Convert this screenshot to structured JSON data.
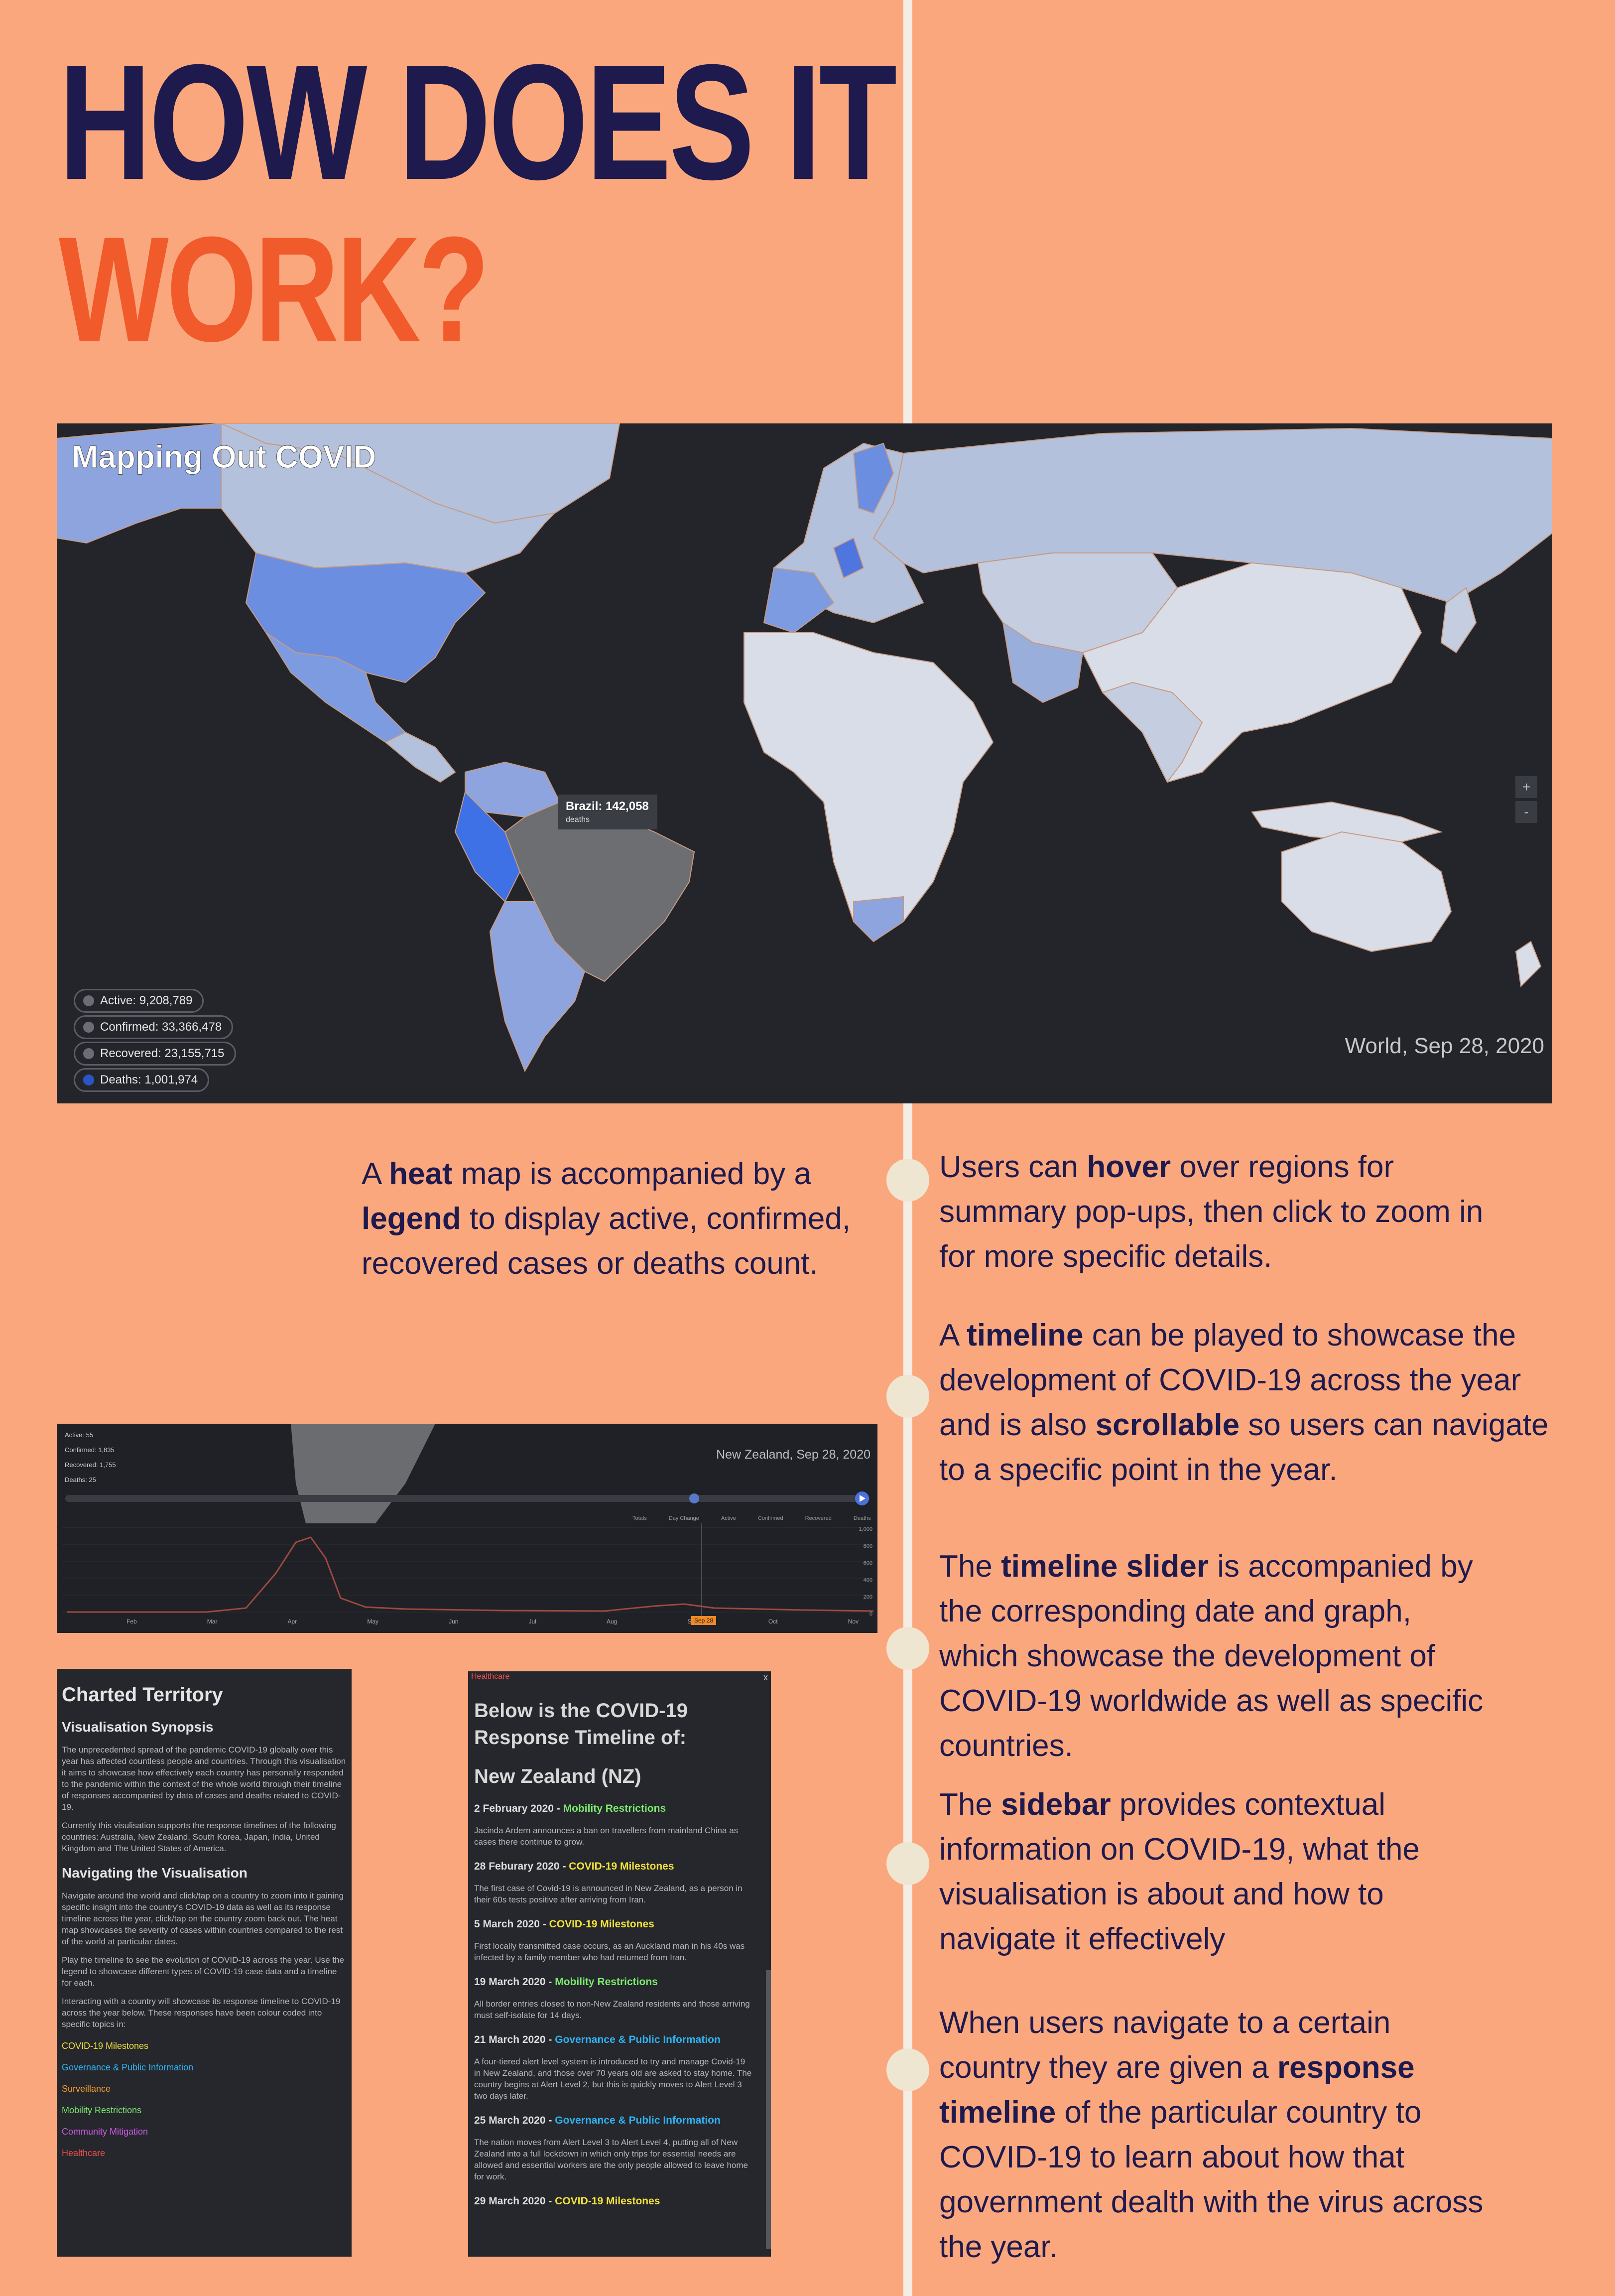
{
  "title": {
    "line1": "HOW DOES IT",
    "line2": "WORK?"
  },
  "map": {
    "title": "Mapping Out COVID",
    "caption": "World, Sep 28, 2020",
    "tooltip": {
      "country": "Brazil: 142,058",
      "metric": "deaths"
    },
    "zoom_in": "+",
    "zoom_out": "-",
    "legend": [
      {
        "label": "Active: 9,208,789",
        "color": "#6a6d75"
      },
      {
        "label": "Confirmed: 33,366,478",
        "color": "#6a6d75"
      },
      {
        "label": "Recovered: 23,155,715",
        "color": "#6a6d75"
      },
      {
        "label": "Deaths: 1,001,974",
        "color": "#2b55c7"
      }
    ]
  },
  "desc": {
    "heat": [
      "A ",
      "heat",
      " map is accompanied by a ",
      "legend",
      " to display active, confirmed, recovered cases or deaths count."
    ],
    "hover": [
      "Users can ",
      "hover",
      " over regions for summary pop-ups, then click to zoom in for more specific details."
    ],
    "timeline": [
      "A ",
      "timeline",
      " can be played to showcase the development of COVID-19 across the year and is also ",
      "scrollable",
      " so users can navigate to a specific point in the year."
    ],
    "slider": [
      "The ",
      "timeline slider",
      " is accompanied by the corresponding date and graph, which showcase the development of COVID-19 worldwide as well as specific countries."
    ],
    "sidebar": [
      "The ",
      "sidebar",
      " provides contextual information on COVID-19, what the visualisation is about and how to navigate it effectively"
    ],
    "response": [
      "When users navigate to a certain country they are given a ",
      "response timeline",
      " of the particular country to COVID-19 to learn about how that government dealth with the virus across the year."
    ]
  },
  "timeline_panel": {
    "caption": "New Zealand, Sep 28, 2020",
    "legend": [
      "Active: 55",
      "Confirmed: 1,835",
      "Recovered: 1,755",
      "Deaths: 25"
    ],
    "toggle_label": "Day Change",
    "toggle_prefix": "Totals",
    "series_labels": [
      "Active",
      "Confirmed",
      "Recovered",
      "Deaths"
    ],
    "months": [
      "Feb",
      "Mar",
      "Apr",
      "May",
      "Jun",
      "Jul",
      "Aug",
      "Sep",
      "Oct",
      "Nov"
    ],
    "current_marker": "Sep 28",
    "y_ticks": [
      "1,000",
      "800",
      "600",
      "400",
      "200",
      "0"
    ]
  },
  "sidebar": {
    "title": "Charted Territory",
    "synopsis_heading": "Visualisation Synopsis",
    "synopsis_p1": "The unprecedented spread of the pandemic COVID-19 globally over this year has affected countless people and countries. Through this visualisation it aims to showcase how effectively each country has personally responded to the pandemic within the context of the whole world through their timeline of responses accompanied by data of cases and deaths related to COVID-19.",
    "synopsis_p2": "Currently this visulisation supports the response timelines of the following countries: Australia, New Zealand, South Korea, Japan, India, United Kingdom and The United States of America.",
    "nav_heading": "Navigating the Visualisation",
    "nav_p1": "Navigate around the world and click/tap on a country to zoom into it gaining specific insight into the country's COVID-19 data as well as its response timeline across the year, click/tap on the country zoom back out. The heat map showcases the severity of cases within countries compared to the rest of the world at particular dates.",
    "nav_p2": "Play the timeline to see the evolution of COVID-19 across the year. Use the legend to showcase different types of COVID-19 case data and a timeline for each.",
    "nav_p3": "Interacting with a country will showcase its response timeline to COVID-19 across the year below. These responses have been colour coded into specific topics in:",
    "topics": [
      {
        "label": "COVID-19 Milestones",
        "color": "#f1e23a"
      },
      {
        "label": "Governance & Public Information",
        "color": "#2fb2f0"
      },
      {
        "label": "Surveillance",
        "color": "#f59b2f"
      },
      {
        "label": "Mobility Restrictions",
        "color": "#7bea6d"
      },
      {
        "label": "Community Mitigation",
        "color": "#d05ae8"
      },
      {
        "label": "Healthcare",
        "color": "#f0504a"
      }
    ]
  },
  "response": {
    "top_tag": "Healthcare",
    "heading": "Below is the COVID-19 Response Timeline of:",
    "country": "New Zealand (NZ)",
    "close": "x",
    "events": [
      {
        "date": "2 February 2020 - ",
        "topic": "Mobility Restrictions",
        "color": "#7bea6d",
        "text": "Jacinda Ardern announces a ban on travellers from mainland China as cases there continue to grow."
      },
      {
        "date": "28 Feburary 2020 - ",
        "topic": "COVID-19 Milestones",
        "color": "#f1e23a",
        "text": "The first case of Covid-19 is announced in New Zealand, as a person in their 60s tests positive after arriving from Iran."
      },
      {
        "date": "5 March 2020 - ",
        "topic": "COVID-19 Milestones",
        "color": "#f1e23a",
        "text": "First locally transmitted case occurs, as an Auckland man in his 40s was infected by a family member who had returned from Iran."
      },
      {
        "date": "19 March 2020 - ",
        "topic": "Mobility Restrictions",
        "color": "#7bea6d",
        "text": "All border entries closed to non-New Zealand residents and those arriving must self-isolate for 14 days."
      },
      {
        "date": "21 March 2020 - ",
        "topic": "Governance & Public Information",
        "color": "#2fb2f0",
        "text": "A four-tiered alert level system is introduced to try and manage Covid-19 in New Zealand, and those over 70 years old are asked to stay home. The country begins at Alert Level 2, but this is quickly moves to Alert Level 3 two days later."
      },
      {
        "date": "25 March 2020 - ",
        "topic": "Governance & Public Information",
        "color": "#2fb2f0",
        "text": "The nation moves from Alert Level 3 to Alert Level 4, putting all of New Zealand into a full lockdown in which only trips for essential needs are allowed and essential workers are the only people allowed to leave home for work."
      },
      {
        "date": "29 March 2020 - ",
        "topic": "COVID-19 Milestones",
        "color": "#f1e23a",
        "text": ""
      }
    ]
  }
}
